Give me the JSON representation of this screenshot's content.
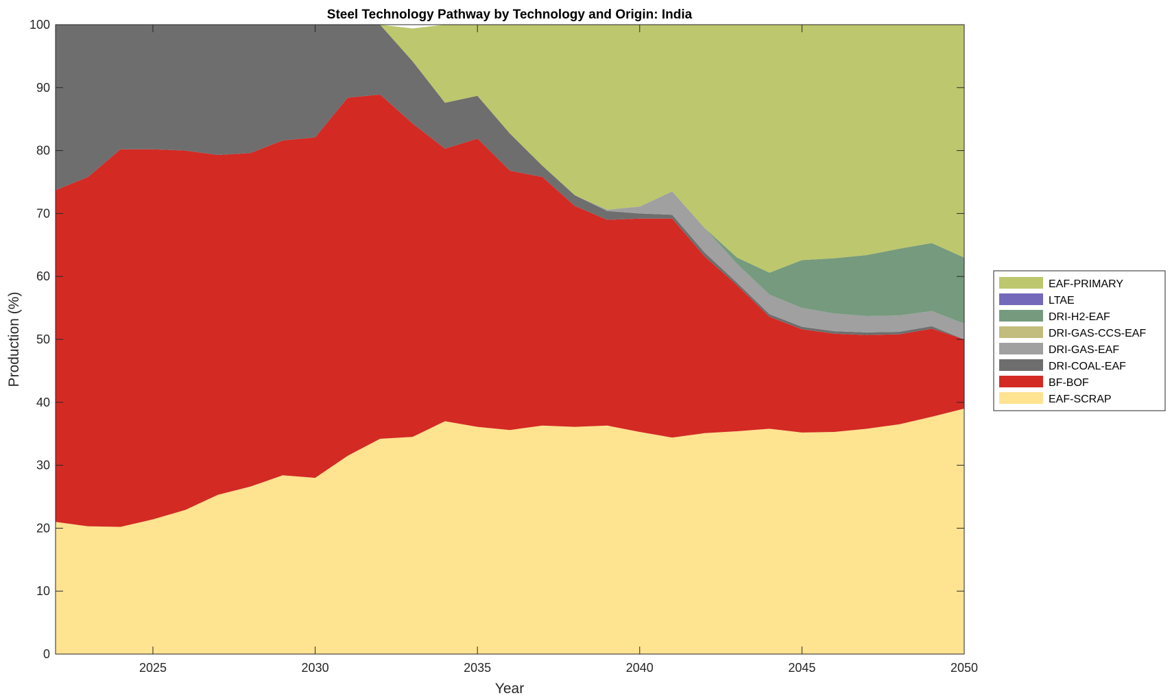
{
  "chart_data": {
    "type": "area",
    "stacked": true,
    "title": "Steel Technology Pathway by Technology and Origin: India",
    "xlabel": "Year",
    "ylabel": "Production (%)",
    "xlim": [
      2022,
      2050
    ],
    "ylim": [
      0,
      100
    ],
    "xticks": [
      2025,
      2030,
      2035,
      2040,
      2045,
      2050
    ],
    "yticks": [
      0,
      10,
      20,
      30,
      40,
      50,
      60,
      70,
      80,
      90,
      100
    ],
    "grid": false,
    "legend_position": "right",
    "x": [
      2022,
      2023,
      2024,
      2025,
      2026,
      2027,
      2028,
      2029,
      2030,
      2031,
      2032,
      2033,
      2034,
      2035,
      2036,
      2037,
      2038,
      2039,
      2040,
      2041,
      2042,
      2043,
      2044,
      2045,
      2046,
      2047,
      2048,
      2049,
      2050
    ],
    "series": [
      {
        "name": "EAF-SCRAP",
        "color": "#FEE391",
        "values": [
          21.0,
          20.3,
          20.2,
          21.4,
          22.9,
          25.3,
          26.6,
          28.4,
          28.0,
          31.5,
          34.2,
          34.5,
          37.0,
          36.1,
          35.6,
          36.3,
          36.1,
          36.3,
          35.3,
          34.4,
          35.1,
          35.4,
          35.8,
          35.2,
          35.3,
          35.8,
          36.5,
          37.7,
          39.0
        ]
      },
      {
        "name": "BF-BOF",
        "color": "#D32A24",
        "values": [
          52.7,
          55.5,
          60.0,
          58.8,
          57.1,
          54.0,
          53.0,
          53.2,
          54.1,
          56.9,
          54.7,
          49.8,
          43.3,
          45.8,
          41.2,
          39.5,
          35.1,
          32.7,
          33.9,
          34.8,
          28.1,
          23.2,
          17.8,
          16.4,
          15.6,
          14.9,
          14.3,
          14.0,
          11.0
        ]
      },
      {
        "name": "DRI-COAL-EAF",
        "color": "#6E6E6E",
        "values": [
          26.3,
          24.2,
          19.8,
          19.8,
          20.0,
          20.7,
          20.4,
          18.4,
          17.9,
          11.6,
          11.1,
          9.9,
          7.3,
          6.8,
          5.9,
          1.8,
          1.7,
          1.4,
          0.8,
          0.6,
          0.6,
          0.4,
          0.4,
          0.4,
          0.4,
          0.4,
          0.4,
          0.4,
          0.0
        ]
      },
      {
        "name": "DRI-GAS-EAF",
        "color": "#A0A0A0",
        "values": [
          0,
          0,
          0,
          0,
          0,
          0,
          0,
          0,
          0,
          0,
          0,
          0,
          0,
          0,
          0,
          0,
          0,
          0.2,
          1.1,
          3.7,
          3.9,
          3.0,
          3.1,
          3.0,
          2.8,
          2.6,
          2.6,
          2.4,
          2.5
        ]
      },
      {
        "name": "DRI-GAS-CCS-EAF",
        "color": "#C2BC7D",
        "values": [
          0,
          0,
          0,
          0,
          0,
          0,
          0,
          0,
          0,
          0,
          0,
          0,
          0,
          0,
          0,
          0,
          0,
          0,
          0,
          0,
          0,
          0,
          0,
          0,
          0,
          0,
          0,
          0,
          0
        ]
      },
      {
        "name": "DRI-H2-EAF",
        "color": "#769A7E",
        "values": [
          0,
          0,
          0,
          0,
          0,
          0,
          0,
          0,
          0,
          0,
          0,
          0,
          0,
          0,
          0,
          0,
          0,
          0,
          0,
          0,
          0,
          1.0,
          3.5,
          7.6,
          8.8,
          9.7,
          10.6,
          10.8,
          10.5
        ]
      },
      {
        "name": "LTAE",
        "color": "#7468BB",
        "values": [
          0,
          0,
          0,
          0,
          0,
          0,
          0,
          0,
          0,
          0,
          0,
          0,
          0,
          0,
          0,
          0,
          0,
          0,
          0,
          0,
          0,
          0,
          0,
          0,
          0,
          0,
          0,
          0,
          0
        ]
      },
      {
        "name": "EAF-PRIMARY",
        "color": "#BDC76D",
        "values": [
          0,
          0,
          0,
          0,
          0,
          0,
          0,
          0,
          0,
          0,
          0,
          5.2,
          12.4,
          11.3,
          17.3,
          22.4,
          27.1,
          29.4,
          28.9,
          26.5,
          32.3,
          37.0,
          39.4,
          37.4,
          37.1,
          36.6,
          35.6,
          34.7,
          37.0
        ]
      }
    ],
    "legend_order": [
      "EAF-PRIMARY",
      "LTAE",
      "DRI-H2-EAF",
      "DRI-GAS-CCS-EAF",
      "DRI-GAS-EAF",
      "DRI-COAL-EAF",
      "BF-BOF",
      "EAF-SCRAP"
    ]
  }
}
